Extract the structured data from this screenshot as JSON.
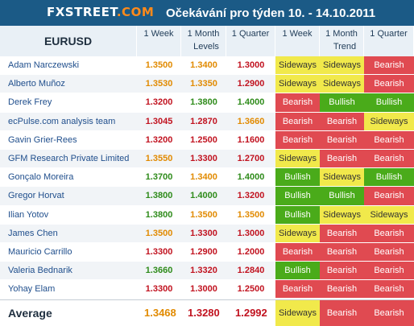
{
  "brand": {
    "prefix": "FXSTREET",
    "suffix": ".COM"
  },
  "title": "Očekávání pro týden 10. - 14.10.2011",
  "header": {
    "pair": "EURUSD",
    "levels_cols": [
      "1 Week",
      "1 Month",
      "1 Quarter"
    ],
    "levels_label": "Levels",
    "trend_cols": [
      "1 Week",
      "1 Month",
      "1 Quarter"
    ],
    "trend_label": "Trend"
  },
  "rows": [
    {
      "name": "Adam Narczewski",
      "levels": [
        "1.3500",
        "1.3400",
        "1.3000"
      ],
      "trend": [
        "Sideways",
        "Sideways",
        "Bearish"
      ]
    },
    {
      "name": "Alberto Muñoz",
      "levels": [
        "1.3530",
        "1.3350",
        "1.2900"
      ],
      "trend": [
        "Sideways",
        "Sideways",
        "Bearish"
      ]
    },
    {
      "name": "Derek Frey",
      "levels": [
        "1.3200",
        "1.3800",
        "1.4000"
      ],
      "trend": [
        "Bearish",
        "Bullish",
        "Bullish"
      ]
    },
    {
      "name": "ecPulse.com analysis team",
      "levels": [
        "1.3045",
        "1.2870",
        "1.3660"
      ],
      "trend": [
        "Bearish",
        "Bearish",
        "Sideways"
      ]
    },
    {
      "name": "Gavin Grier-Rees",
      "levels": [
        "1.3200",
        "1.2500",
        "1.1600"
      ],
      "trend": [
        "Bearish",
        "Bearish",
        "Bearish"
      ]
    },
    {
      "name": "GFM Research Private Limited",
      "levels": [
        "1.3550",
        "1.3300",
        "1.2700"
      ],
      "trend": [
        "Sideways",
        "Bearish",
        "Bearish"
      ]
    },
    {
      "name": "Gonçalo Moreira",
      "levels": [
        "1.3700",
        "1.3400",
        "1.4000"
      ],
      "trend": [
        "Bullish",
        "Sideways",
        "Bullish"
      ]
    },
    {
      "name": "Gregor Horvat",
      "levels": [
        "1.3800",
        "1.4000",
        "1.3200"
      ],
      "trend": [
        "Bullish",
        "Bullish",
        "Bearish"
      ]
    },
    {
      "name": "Ilian Yotov",
      "levels": [
        "1.3800",
        "1.3500",
        "1.3500"
      ],
      "trend": [
        "Bullish",
        "Sideways",
        "Sideways"
      ]
    },
    {
      "name": "James Chen",
      "levels": [
        "1.3500",
        "1.3300",
        "1.3000"
      ],
      "trend": [
        "Sideways",
        "Bearish",
        "Bearish"
      ]
    },
    {
      "name": "Mauricio Carrillo",
      "levels": [
        "1.3300",
        "1.2900",
        "1.2000"
      ],
      "trend": [
        "Bearish",
        "Bearish",
        "Bearish"
      ]
    },
    {
      "name": "Valeria Bednarik",
      "levels": [
        "1.3660",
        "1.3320",
        "1.2840"
      ],
      "trend": [
        "Bullish",
        "Bearish",
        "Bearish"
      ]
    },
    {
      "name": "Yohay Elam",
      "levels": [
        "1.3300",
        "1.3000",
        "1.2500"
      ],
      "trend": [
        "Bearish",
        "Bearish",
        "Bearish"
      ]
    }
  ],
  "average": {
    "label": "Average",
    "levels": [
      "1.3468",
      "1.3280",
      "1.2992"
    ],
    "trend": [
      "Sideways",
      "Bearish",
      "Bearish"
    ]
  },
  "colors": {
    "header_bar": "#1b5a86",
    "bearish": "#e04a51",
    "bullish": "#4aab1a",
    "sideways": "#f1e94b",
    "level_orange": "#e18a00",
    "level_red": "#c1121f",
    "level_green": "#2e8b1a"
  }
}
